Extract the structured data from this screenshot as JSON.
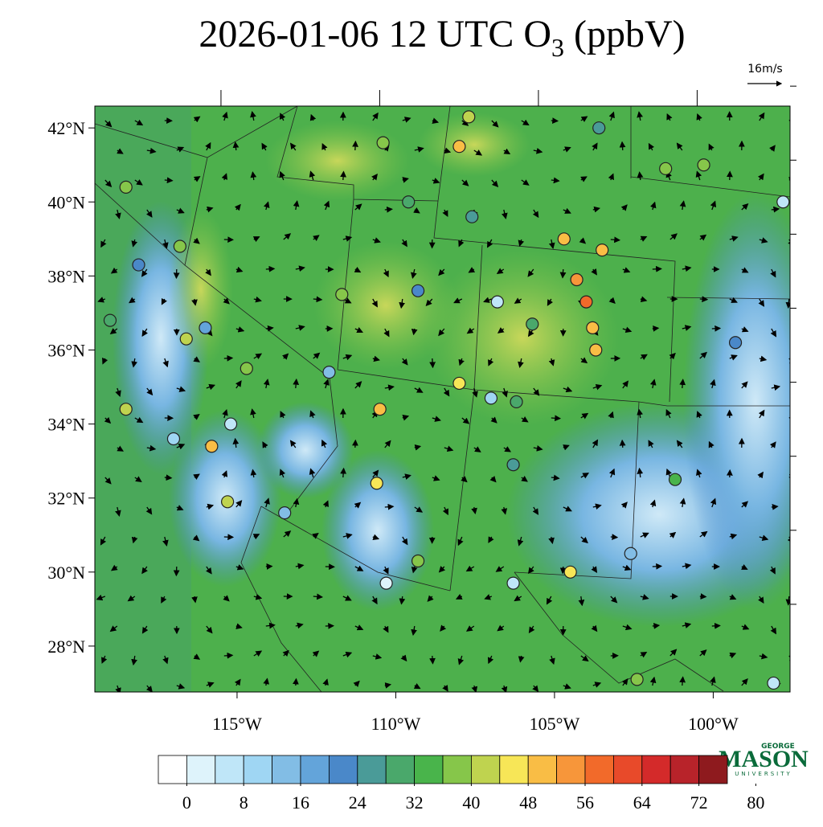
{
  "title": {
    "text": "2026-01-06 12 UTC O",
    "subscript": "3",
    "suffix": "(ppbV)"
  },
  "reference_vector": "16m/s",
  "logo": {
    "top": "GEORGE",
    "main": "MASON",
    "bottom": "UNIVERSITY"
  },
  "map": {
    "lonlim": [
      -119.48,
      -97.58
    ],
    "latlim": [
      26.76,
      42.59
    ],
    "lonticks": [
      {
        "value": -115,
        "label": "115°W"
      },
      {
        "value": -110,
        "label": "110°W"
      },
      {
        "value": -105,
        "label": "105°W"
      },
      {
        "value": -100,
        "label": "100°W"
      }
    ],
    "latticks": [
      {
        "value": 28,
        "label": "28°N"
      },
      {
        "value": 30,
        "label": "30°N"
      },
      {
        "value": 32,
        "label": "32°N"
      },
      {
        "value": 34,
        "label": "34°N"
      },
      {
        "value": 36,
        "label": "36°N"
      },
      {
        "value": 38,
        "label": "38°N"
      },
      {
        "value": 40,
        "label": "40°N"
      },
      {
        "value": 42,
        "label": "42°N"
      }
    ],
    "stations": [
      {
        "lon": -103.6,
        "lat": 42.0,
        "value": 24
      },
      {
        "lon": -108.0,
        "lat": 41.5,
        "value": 48
      },
      {
        "lon": -107.7,
        "lat": 42.3,
        "value": 40
      },
      {
        "lon": -110.4,
        "lat": 41.6,
        "value": 36
      },
      {
        "lon": -109.6,
        "lat": 40.0,
        "value": 28
      },
      {
        "lon": -107.6,
        "lat": 39.6,
        "value": 24
      },
      {
        "lon": -104.7,
        "lat": 39.0,
        "value": 48
      },
      {
        "lon": -103.5,
        "lat": 38.7,
        "value": 48
      },
      {
        "lon": -104.3,
        "lat": 37.9,
        "value": 52
      },
      {
        "lon": -104.0,
        "lat": 37.3,
        "value": 58
      },
      {
        "lon": -103.8,
        "lat": 36.6,
        "value": 48
      },
      {
        "lon": -103.7,
        "lat": 36.0,
        "value": 48
      },
      {
        "lon": -110.5,
        "lat": 34.4,
        "value": 48
      },
      {
        "lon": -110.6,
        "lat": 32.4,
        "value": 44
      },
      {
        "lon": -110.3,
        "lat": 29.7,
        "value": 2
      },
      {
        "lon": -112.1,
        "lat": 35.4,
        "value": 14
      },
      {
        "lon": -115.2,
        "lat": 34.0,
        "value": 4
      },
      {
        "lon": -115.8,
        "lat": 33.4,
        "value": 48
      },
      {
        "lon": -115.3,
        "lat": 31.9,
        "value": 40
      },
      {
        "lon": -116.6,
        "lat": 36.3,
        "value": 40
      },
      {
        "lon": -116.0,
        "lat": 36.6,
        "value": 16
      },
      {
        "lon": -118.1,
        "lat": 38.3,
        "value": 22
      },
      {
        "lon": -119.0,
        "lat": 36.8,
        "value": 30
      },
      {
        "lon": -118.5,
        "lat": 34.4,
        "value": 40
      },
      {
        "lon": -117.0,
        "lat": 33.6,
        "value": 8
      },
      {
        "lon": -113.5,
        "lat": 31.6,
        "value": 12
      },
      {
        "lon": -109.3,
        "lat": 30.3,
        "value": 36
      },
      {
        "lon": -106.3,
        "lat": 29.7,
        "value": 6
      },
      {
        "lon": -104.5,
        "lat": 30.0,
        "value": 44
      },
      {
        "lon": -102.6,
        "lat": 30.5,
        "value": 14
      },
      {
        "lon": -101.2,
        "lat": 32.5,
        "value": 34
      },
      {
        "lon": -99.3,
        "lat": 36.2,
        "value": 20
      },
      {
        "lon": -97.8,
        "lat": 40.0,
        "value": 6
      },
      {
        "lon": -100.3,
        "lat": 41.0,
        "value": 36
      },
      {
        "lon": -101.5,
        "lat": 40.9,
        "value": 36
      },
      {
        "lon": -106.2,
        "lat": 34.6,
        "value": 30
      },
      {
        "lon": -107.0,
        "lat": 34.7,
        "value": 10
      },
      {
        "lon": -105.7,
        "lat": 36.7,
        "value": 28
      },
      {
        "lon": -106.8,
        "lat": 37.3,
        "value": 6
      },
      {
        "lon": -109.3,
        "lat": 37.6,
        "value": 22
      },
      {
        "lon": -111.7,
        "lat": 37.5,
        "value": 38
      },
      {
        "lon": -114.7,
        "lat": 35.5,
        "value": 36
      },
      {
        "lon": -118.5,
        "lat": 40.4,
        "value": 38
      },
      {
        "lon": -116.8,
        "lat": 38.8,
        "value": 38
      },
      {
        "lon": -102.4,
        "lat": 27.1,
        "value": 38
      },
      {
        "lon": -98.1,
        "lat": 27.0,
        "value": 4
      },
      {
        "lon": -108.0,
        "lat": 35.1,
        "value": 44
      },
      {
        "lon": -106.3,
        "lat": 32.9,
        "value": 26
      }
    ]
  },
  "colorbar": {
    "colors": [
      "#ffffff",
      "#def3fb",
      "#bfe6f8",
      "#9fd6f3",
      "#82bde5",
      "#63a4da",
      "#4a88c9",
      "#4a9b98",
      "#4aa86b",
      "#49b44b",
      "#86c64a",
      "#bfd34f",
      "#f7e657",
      "#f9bd45",
      "#f7963a",
      "#f26a2a",
      "#e84a2a",
      "#d42a2a",
      "#b8232a",
      "#8e1a1e"
    ],
    "ticks": [
      0,
      8,
      16,
      24,
      32,
      40,
      48,
      56,
      64,
      72,
      80
    ]
  }
}
